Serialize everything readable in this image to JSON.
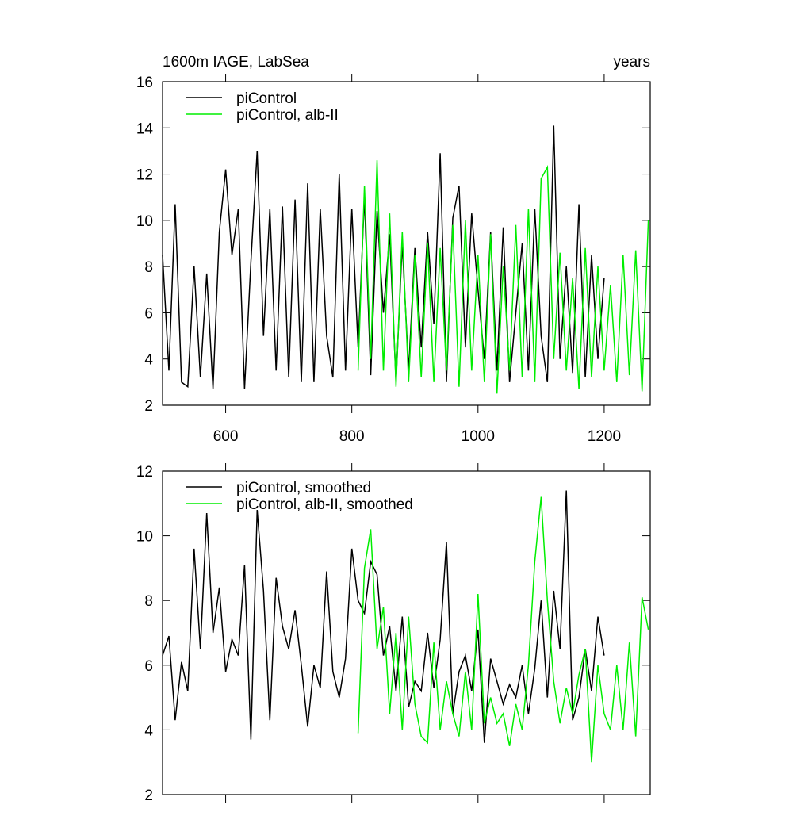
{
  "chart_data": [
    {
      "type": "line",
      "title": "1600m IAGE, LabSea",
      "subtitle": "years",
      "xlim": [
        500,
        1273
      ],
      "xticks": [
        600,
        800,
        1000,
        1200
      ],
      "ylim": [
        2,
        16
      ],
      "yticks": [
        2,
        4,
        6,
        8,
        10,
        12,
        14,
        16
      ],
      "series": [
        {
          "name": "piControl",
          "color": "#000000",
          "x": [
            500,
            510,
            520,
            530,
            540,
            550,
            560,
            570,
            580,
            590,
            600,
            610,
            620,
            630,
            640,
            650,
            660,
            670,
            680,
            690,
            700,
            710,
            720,
            730,
            740,
            750,
            760,
            770,
            780,
            790,
            800,
            810,
            820,
            830,
            840,
            850,
            860,
            870,
            880,
            890,
            900,
            910,
            920,
            930,
            940,
            950,
            960,
            970,
            980,
            990,
            1000,
            1010,
            1020,
            1030,
            1040,
            1050,
            1060,
            1070,
            1080,
            1090,
            1100,
            1110,
            1120,
            1130,
            1140,
            1150,
            1160,
            1170,
            1180,
            1190,
            1200
          ],
          "values": [
            8.5,
            3.5,
            10.7,
            3.0,
            2.8,
            8.0,
            3.2,
            7.7,
            2.7,
            9.5,
            12.2,
            8.5,
            10.5,
            2.7,
            8.2,
            13.0,
            5.0,
            10.5,
            3.5,
            10.6,
            3.2,
            10.9,
            3.0,
            11.6,
            3.0,
            10.5,
            5.0,
            3.2,
            12.0,
            3.5,
            10.5,
            4.5,
            11.0,
            3.3,
            10.4,
            6.0,
            9.4,
            3.0,
            9.0,
            3.5,
            8.8,
            4.5,
            9.5,
            5.5,
            12.9,
            3.0,
            10.1,
            11.5,
            4.5,
            10.3,
            7.0,
            4.0,
            9.5,
            3.5,
            9.7,
            3.0,
            6.0,
            9.0,
            3.5,
            10.5,
            5.0,
            3.0,
            14.1,
            4.0,
            8.0,
            3.4,
            10.7,
            3.2,
            8.5,
            4.0,
            7.5
          ]
        },
        {
          "name": "piControl, alb-II",
          "color": "#00ee00",
          "x": [
            810,
            820,
            830,
            840,
            850,
            860,
            870,
            880,
            890,
            900,
            910,
            920,
            930,
            940,
            950,
            960,
            970,
            980,
            990,
            1000,
            1010,
            1020,
            1030,
            1040,
            1050,
            1060,
            1070,
            1080,
            1090,
            1100,
            1110,
            1120,
            1130,
            1140,
            1150,
            1160,
            1170,
            1180,
            1190,
            1200,
            1210,
            1220,
            1230,
            1240,
            1250,
            1260,
            1270
          ],
          "values": [
            3.5,
            11.5,
            4,
            12.6,
            3.5,
            10.3,
            2.8,
            9.5,
            3,
            8.5,
            3.2,
            9,
            3,
            8.8,
            3.5,
            9.8,
            2.8,
            10,
            3.5,
            8.5,
            3,
            9.4,
            2.5,
            8,
            3.5,
            9.8,
            3.2,
            10.5,
            3,
            11.8,
            12.3,
            4,
            8.6,
            3.5,
            7.5,
            2.7,
            8.8,
            3.2,
            8,
            3.5,
            7.2,
            3,
            8.5,
            3.3,
            8.7,
            2.6,
            10
          ]
        }
      ]
    },
    {
      "type": "line",
      "xlim": [
        500,
        1273
      ],
      "xticks": [
        600,
        800,
        1000,
        1200
      ],
      "ylim": [
        2,
        12
      ],
      "yticks": [
        2,
        4,
        6,
        8,
        10,
        12
      ],
      "series": [
        {
          "name": "piControl, smoothed",
          "color": "#000000",
          "x": [
            500,
            510,
            520,
            530,
            540,
            550,
            560,
            570,
            580,
            590,
            600,
            610,
            620,
            630,
            640,
            650,
            660,
            670,
            680,
            690,
            700,
            710,
            720,
            730,
            740,
            750,
            760,
            770,
            780,
            790,
            800,
            810,
            820,
            830,
            840,
            850,
            860,
            870,
            880,
            890,
            900,
            910,
            920,
            930,
            940,
            950,
            960,
            970,
            980,
            990,
            1000,
            1010,
            1020,
            1030,
            1040,
            1050,
            1060,
            1070,
            1080,
            1090,
            1100,
            1110,
            1120,
            1130,
            1140,
            1150,
            1160,
            1170,
            1180,
            1190,
            1200
          ],
          "values": [
            6.3,
            6.9,
            4.3,
            6.1,
            5.2,
            9.6,
            6.5,
            10.7,
            7.0,
            8.4,
            5.8,
            6.8,
            6.3,
            9.1,
            3.7,
            10.8,
            8.3,
            4.3,
            8.7,
            7.2,
            6.5,
            7.7,
            6.0,
            4.1,
            6.0,
            5.3,
            8.9,
            5.8,
            5.0,
            6.2,
            9.6,
            8.0,
            7.6,
            9.2,
            8.8,
            6.3,
            7.2,
            5.2,
            7.5,
            4.7,
            5.5,
            5.2,
            7.0,
            5.3,
            6.8,
            9.8,
            4.5,
            5.8,
            6.3,
            5.2,
            7.1,
            3.6,
            6.2,
            5.5,
            4.8,
            5.4,
            5.0,
            6.0,
            4.5,
            5.9,
            8.0,
            5.0,
            8.3,
            6.5,
            11.4,
            4.3,
            5.0,
            6.5,
            5.2,
            7.5,
            6.3
          ]
        },
        {
          "name": "piControl, alb-II, smoothed",
          "color": "#00ee00",
          "x": [
            810,
            820,
            830,
            840,
            850,
            860,
            870,
            880,
            890,
            900,
            910,
            920,
            930,
            940,
            950,
            960,
            970,
            980,
            990,
            1000,
            1010,
            1020,
            1030,
            1040,
            1050,
            1060,
            1070,
            1080,
            1090,
            1100,
            1110,
            1120,
            1130,
            1140,
            1150,
            1160,
            1170,
            1180,
            1190,
            1200,
            1210,
            1220,
            1230,
            1240,
            1250,
            1260,
            1270
          ],
          "values": [
            3.9,
            9.0,
            10.2,
            6.5,
            7.8,
            4.5,
            7.0,
            4.0,
            7.5,
            4.8,
            3.8,
            3.6,
            6.7,
            4.0,
            5.5,
            4.5,
            3.8,
            5.8,
            4.0,
            8.2,
            4.2,
            5.0,
            4.2,
            4.5,
            3.5,
            4.8,
            4.0,
            6.0,
            9.2,
            11.2,
            8.0,
            5.5,
            4.2,
            5.3,
            4.5,
            5.7,
            6.5,
            3.0,
            6.0,
            4.5,
            4.0,
            6.0,
            4.0,
            6.7,
            3.8,
            8.1,
            7.1
          ]
        }
      ]
    }
  ]
}
